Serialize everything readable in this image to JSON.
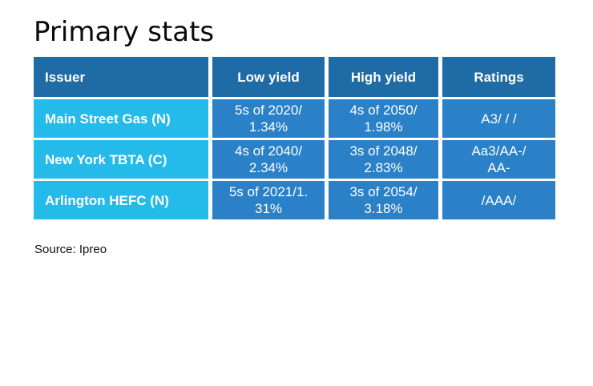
{
  "page": {
    "title": "Primary stats",
    "source": "Source: Ipreo"
  },
  "table": {
    "columns": [
      {
        "label": "Issuer"
      },
      {
        "label": "Low yield"
      },
      {
        "label": "High yield"
      },
      {
        "label": "Ratings"
      }
    ],
    "rows": [
      {
        "issuer": "Main Street Gas (N)",
        "low": "5s of 2020/\n1.34%",
        "high": "4s of 2050/\n1.98%",
        "ratings": "A3/ / /"
      },
      {
        "issuer": "New York TBTA (C)",
        "low": "4s of 2040/\n2.34%",
        "high": "3s of 2048/\n2.83%",
        "ratings": "Aa3/AA-/\nAA-"
      },
      {
        "issuer": "Arlington HEFC (N)",
        "low": "5s of 2021/1.\n31%",
        "high": "3s of 2054/\n3.18%",
        "ratings": "/AAA/"
      }
    ],
    "colors": {
      "header_bg": "#1f6ba5",
      "issuer_bg": "#24bae9",
      "cell_bg": "#2a81c8",
      "text": "#ffffff"
    }
  },
  "chart_data": {
    "type": "table",
    "title": "Primary stats",
    "columns": [
      "Issuer",
      "Low yield",
      "High yield",
      "Ratings"
    ],
    "rows": [
      [
        "Main Street Gas (N)",
        "5s of 2020/1.34%",
        "4s of 2050/1.98%",
        "A3/ / /"
      ],
      [
        "New York TBTA (C)",
        "4s of 2040/2.34%",
        "3s of 2048/2.83%",
        "Aa3/AA-/AA-"
      ],
      [
        "Arlington HEFC (N)",
        "5s of 2021/1.31%",
        "3s of 2054/3.18%",
        "/AAA/"
      ]
    ],
    "source": "Source: Ipreo"
  }
}
